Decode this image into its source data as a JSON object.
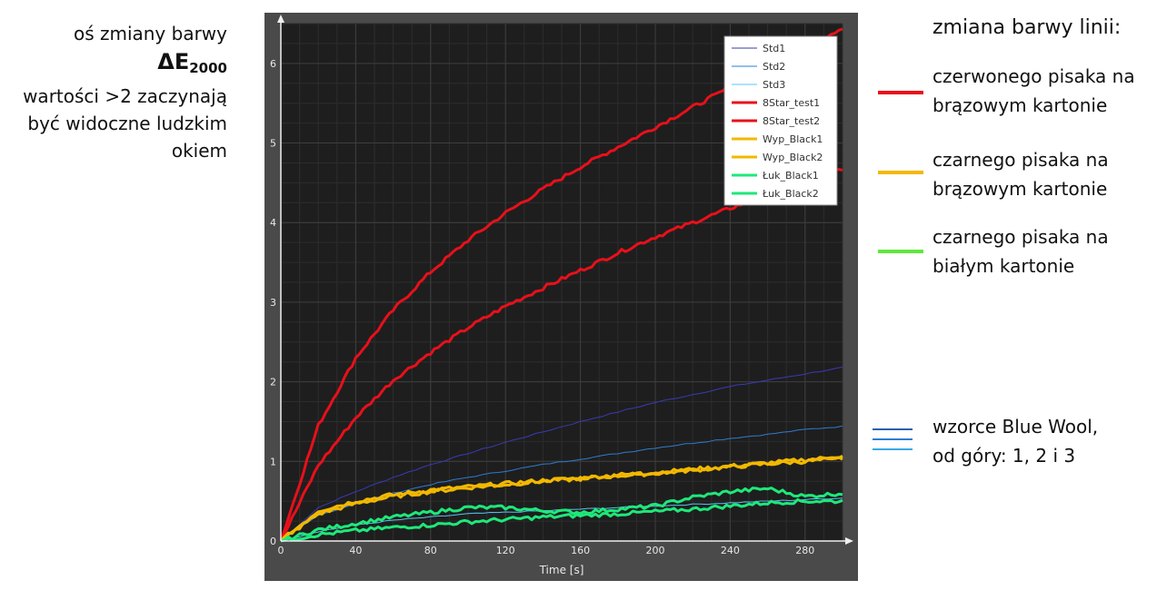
{
  "left_annotation": {
    "line1": "oś zmiany barwy",
    "symbol": "ΔE",
    "symbol_sub": "2000",
    "line3": "wartości >2 zaczynają",
    "line4": "być widoczne ludzkim",
    "line5": "okiem"
  },
  "right_legend": {
    "title": "zmiana barwy linii:",
    "items": [
      {
        "line1": "czerwonego pisaka na",
        "line2": "brązowym kartonie",
        "color": "#e8101a"
      },
      {
        "line1": "czarnego pisaka na",
        "line2": "brązowym kartonie",
        "color": "#f2b800"
      },
      {
        "line1": "czarnego pisaka na",
        "line2": "białym kartonie",
        "color": "#5fe83c"
      }
    ],
    "bluewool": {
      "line1": "wzorce Blue Wool,",
      "line2": "od góry: 1, 2 i 3",
      "colors": [
        "#2a5fae",
        "#2f7cd0",
        "#3aa8e8"
      ]
    }
  },
  "chart_data": {
    "type": "line",
    "title": "",
    "xlabel": "Time [s]",
    "ylabel": "",
    "xlim": [
      0,
      300
    ],
    "ylim": [
      0,
      6.5
    ],
    "xticks": [
      0,
      40,
      80,
      120,
      160,
      200,
      240,
      280
    ],
    "yticks": [
      0,
      1,
      2,
      3,
      4,
      5,
      6
    ],
    "grid": true,
    "legend_position": "top-right",
    "x": [
      0,
      20,
      40,
      60,
      80,
      100,
      120,
      140,
      160,
      180,
      200,
      220,
      240,
      260,
      280,
      300
    ],
    "series": [
      {
        "name": "Std1",
        "color": "#3a3ab8",
        "width": 1,
        "values": [
          0,
          0.42,
          0.62,
          0.8,
          0.96,
          1.1,
          1.24,
          1.37,
          1.5,
          1.62,
          1.74,
          1.84,
          1.94,
          2.02,
          2.1,
          2.18
        ]
      },
      {
        "name": "Std2",
        "color": "#2f7cd0",
        "width": 1,
        "values": [
          0,
          0.32,
          0.47,
          0.6,
          0.71,
          0.8,
          0.88,
          0.96,
          1.03,
          1.1,
          1.17,
          1.23,
          1.29,
          1.34,
          1.4,
          1.44
        ]
      },
      {
        "name": "Std3",
        "color": "#59c4f0",
        "width": 1,
        "values": [
          0,
          0.12,
          0.2,
          0.26,
          0.3,
          0.34,
          0.36,
          0.38,
          0.4,
          0.42,
          0.44,
          0.46,
          0.48,
          0.5,
          0.52,
          0.54
        ]
      },
      {
        "name": "8Star_test1",
        "color": "#e8101a",
        "width": 3,
        "values": [
          0,
          1.45,
          2.3,
          2.9,
          3.38,
          3.78,
          4.12,
          4.42,
          4.7,
          4.95,
          5.2,
          5.45,
          5.7,
          5.95,
          6.2,
          6.45
        ]
      },
      {
        "name": "8Star_test2",
        "color": "#e8101a",
        "width": 3,
        "values": [
          0,
          0.95,
          1.55,
          2.02,
          2.37,
          2.68,
          2.95,
          3.18,
          3.4,
          3.62,
          3.82,
          4.0,
          4.18,
          4.35,
          4.52,
          4.68
        ]
      },
      {
        "name": "Wyp_Black1",
        "color": "#f2b800",
        "width": 3,
        "values": [
          0,
          0.38,
          0.5,
          0.58,
          0.64,
          0.68,
          0.72,
          0.76,
          0.79,
          0.83,
          0.86,
          0.9,
          0.94,
          0.98,
          1.02,
          1.06
        ]
      },
      {
        "name": "Wyp_Black2",
        "color": "#f2b800",
        "width": 3,
        "values": [
          0,
          0.34,
          0.47,
          0.56,
          0.62,
          0.67,
          0.71,
          0.75,
          0.78,
          0.82,
          0.85,
          0.89,
          0.93,
          0.97,
          1.0,
          1.04
        ]
      },
      {
        "name": "Łuk_Black1",
        "color": "#1ee87a",
        "width": 3,
        "values": [
          0,
          0.14,
          0.22,
          0.3,
          0.36,
          0.42,
          0.42,
          0.38,
          0.36,
          0.4,
          0.44,
          0.55,
          0.62,
          0.66,
          0.56,
          0.6
        ]
      },
      {
        "name": "Łuk_Black2",
        "color": "#1ee87a",
        "width": 3,
        "values": [
          0,
          0.08,
          0.13,
          0.17,
          0.2,
          0.24,
          0.27,
          0.3,
          0.32,
          0.34,
          0.37,
          0.4,
          0.44,
          0.48,
          0.5,
          0.5
        ]
      }
    ]
  }
}
